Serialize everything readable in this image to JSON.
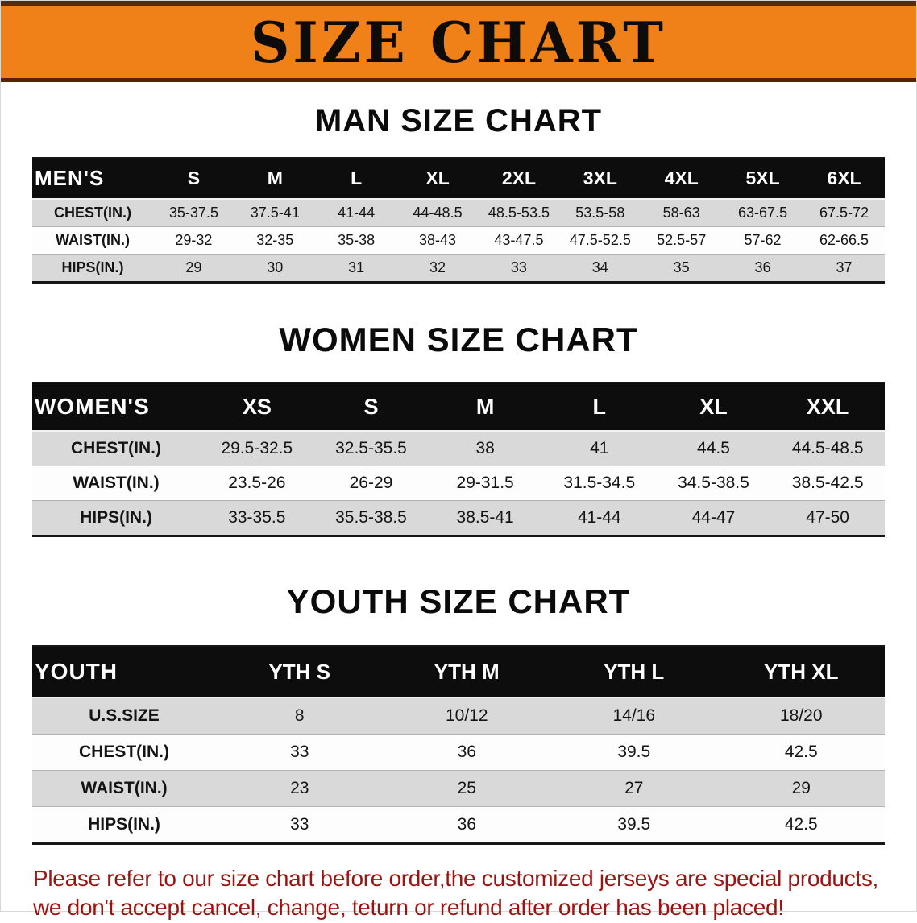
{
  "banner": {
    "title": "SIZE CHART",
    "bg_color": "#F08119"
  },
  "sections": [
    {
      "id": "men-size-chart",
      "heading": "MAN SIZE CHART",
      "table": {
        "header": [
          "MEN'S",
          "S",
          "M",
          "L",
          "XL",
          "2XL",
          "3XL",
          "4XL",
          "5XL",
          "6XL"
        ],
        "rows": [
          {
            "label": "CHEST(IN.)",
            "values": [
              "35-37.5",
              "37.5-41",
              "41-44",
              "44-48.5",
              "48.5-53.5",
              "53.5-58",
              "58-63",
              "63-67.5",
              "67.5-72"
            ]
          },
          {
            "label": "WAIST(IN.)",
            "values": [
              "29-32",
              "32-35",
              "35-38",
              "38-43",
              "43-47.5",
              "47.5-52.5",
              "52.5-57",
              "57-62",
              "62-66.5"
            ]
          },
          {
            "label": "HIPS(IN.)",
            "values": [
              "29",
              "30",
              "31",
              "32",
              "33",
              "34",
              "35",
              "36",
              "37"
            ]
          }
        ]
      }
    },
    {
      "id": "women-size-chart",
      "heading": "WOMEN SIZE CHART",
      "table": {
        "header": [
          "WOMEN'S",
          "XS",
          "S",
          "M",
          "L",
          "XL",
          "XXL"
        ],
        "rows": [
          {
            "label": "CHEST(IN.)",
            "values": [
              "29.5-32.5",
              "32.5-35.5",
              "38",
              "41",
              "44.5",
              "44.5-48.5"
            ]
          },
          {
            "label": "WAIST(IN.)",
            "values": [
              "23.5-26",
              "26-29",
              "29-31.5",
              "31.5-34.5",
              "34.5-38.5",
              "38.5-42.5"
            ]
          },
          {
            "label": "HIPS(IN.)",
            "values": [
              "33-35.5",
              "35.5-38.5",
              "38.5-41",
              "41-44",
              "44-47",
              "47-50"
            ]
          }
        ]
      }
    },
    {
      "id": "youth-size-chart",
      "heading": "YOUTH SIZE CHART",
      "table": {
        "header": [
          "YOUTH",
          "YTH S",
          "YTH M",
          "YTH L",
          "YTH XL"
        ],
        "rows": [
          {
            "label": "U.S.SIZE",
            "values": [
              "8",
              "10/12",
              "14/16",
              "18/20"
            ]
          },
          {
            "label": "CHEST(IN.)",
            "values": [
              "33",
              "36",
              "39.5",
              "42.5"
            ]
          },
          {
            "label": "WAIST(IN.)",
            "values": [
              "23",
              "25",
              "27",
              "29"
            ]
          },
          {
            "label": "HIPS(IN.)",
            "values": [
              "33",
              "36",
              "39.5",
              "42.5"
            ]
          }
        ]
      }
    }
  ],
  "footer": {
    "text_color": "#9c1412",
    "lines": [
      "Please refer to our size chart before order,the customized jerseys are special products,",
      "we don't accept cancel, change, teturn or refund after order has been placed!"
    ]
  }
}
